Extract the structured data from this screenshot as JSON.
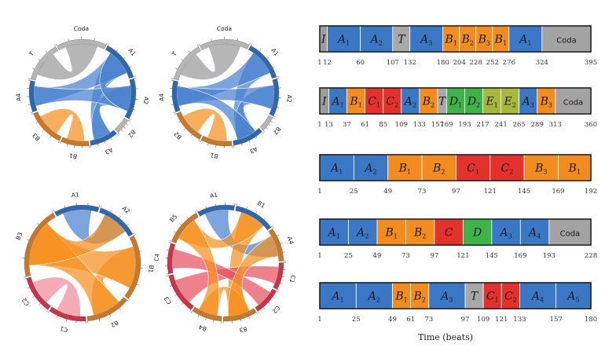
{
  "colors": {
    "A": "#3a78c6",
    "B": "#f28c1f",
    "C": "#e3322b",
    "D": "#3db34a",
    "E": "#a7b83a",
    "T": "#a8a8a8",
    "I": "#9c9c9c",
    "Coda": "#a3a3a3",
    "chordA": "#4a82d0",
    "chordB": "#f5901e",
    "chordGray": "#9a9a9a",
    "chordPink": "#f08a9a",
    "chordRed": "#e8505e",
    "ringGray": "#b5b5b5",
    "ringBlue": "#2e67ad",
    "ringOrange": "#c8782a",
    "ringRed": "#c8344a"
  },
  "axis_label": "Time (beats)",
  "timelines": [
    {
      "segments": [
        {
          "label": "I",
          "sub": "",
          "type": "I",
          "start": 1,
          "end": 12
        },
        {
          "label": "A",
          "sub": "1",
          "type": "A",
          "start": 12,
          "end": 60
        },
        {
          "label": "A",
          "sub": "2",
          "type": "A",
          "start": 60,
          "end": 107
        },
        {
          "label": "T",
          "sub": "",
          "type": "T",
          "start": 107,
          "end": 132
        },
        {
          "label": "A",
          "sub": "3",
          "type": "A",
          "start": 132,
          "end": 180
        },
        {
          "label": "B",
          "sub": "1",
          "type": "B",
          "start": 180,
          "end": 204
        },
        {
          "label": "B",
          "sub": "2",
          "type": "B",
          "start": 204,
          "end": 228
        },
        {
          "label": "B",
          "sub": "3",
          "type": "B",
          "start": 228,
          "end": 252
        },
        {
          "label": "B",
          "sub": "1",
          "type": "B",
          "start": 252,
          "end": 276
        },
        {
          "label": "A",
          "sub": "1",
          "type": "A",
          "start": 276,
          "end": 324
        },
        {
          "label": "Coda",
          "sub": "",
          "type": "Coda",
          "start": 324,
          "end": 395
        }
      ],
      "ticks": [
        "1",
        "12",
        "60",
        "107",
        "132",
        "180",
        "204",
        "228",
        "252",
        "276",
        "324",
        "395"
      ]
    },
    {
      "segments": [
        {
          "label": "I",
          "sub": "",
          "type": "I",
          "start": 1,
          "end": 13
        },
        {
          "label": "A",
          "sub": "1",
          "type": "A",
          "start": 13,
          "end": 37
        },
        {
          "label": "B",
          "sub": "1",
          "type": "B",
          "start": 37,
          "end": 61
        },
        {
          "label": "C",
          "sub": "1",
          "type": "C",
          "start": 61,
          "end": 85
        },
        {
          "label": "C",
          "sub": "2",
          "type": "C",
          "start": 85,
          "end": 109
        },
        {
          "label": "A",
          "sub": "2",
          "type": "A",
          "start": 109,
          "end": 133
        },
        {
          "label": "B",
          "sub": "2",
          "type": "B",
          "start": 133,
          "end": 157
        },
        {
          "label": "T",
          "sub": "",
          "type": "T",
          "start": 157,
          "end": 169
        },
        {
          "label": "D",
          "sub": "1",
          "type": "D",
          "start": 169,
          "end": 193
        },
        {
          "label": "D",
          "sub": "2",
          "type": "D",
          "start": 193,
          "end": 217
        },
        {
          "label": "E",
          "sub": "1",
          "type": "E",
          "start": 217,
          "end": 241
        },
        {
          "label": "E",
          "sub": "2",
          "type": "E",
          "start": 241,
          "end": 265
        },
        {
          "label": "A",
          "sub": "3",
          "type": "A",
          "start": 265,
          "end": 289
        },
        {
          "label": "B",
          "sub": "3",
          "type": "B",
          "start": 289,
          "end": 313
        },
        {
          "label": "Coda",
          "sub": "",
          "type": "Coda",
          "start": 313,
          "end": 360
        }
      ],
      "ticks": [
        "1",
        "13",
        "37",
        "61",
        "85",
        "109",
        "133",
        "157",
        "169",
        "193",
        "217",
        "241",
        "265",
        "289",
        "313",
        "360"
      ]
    },
    {
      "segments": [
        {
          "label": "A",
          "sub": "1",
          "type": "A",
          "start": 1,
          "end": 25
        },
        {
          "label": "A",
          "sub": "2",
          "type": "A",
          "start": 25,
          "end": 49
        },
        {
          "label": "B",
          "sub": "1",
          "type": "B",
          "start": 49,
          "end": 73
        },
        {
          "label": "B",
          "sub": "2",
          "type": "B",
          "start": 73,
          "end": 97
        },
        {
          "label": "C",
          "sub": "1",
          "type": "C",
          "start": 97,
          "end": 121
        },
        {
          "label": "C",
          "sub": "2",
          "type": "C",
          "start": 121,
          "end": 145
        },
        {
          "label": "B",
          "sub": "3",
          "type": "B",
          "start": 145,
          "end": 169
        },
        {
          "label": "B",
          "sub": "1",
          "type": "B",
          "start": 169,
          "end": 192
        }
      ],
      "ticks": [
        "1",
        "25",
        "49",
        "73",
        "97",
        "121",
        "145",
        "169",
        "192"
      ]
    },
    {
      "segments": [
        {
          "label": "A",
          "sub": "1",
          "type": "A",
          "start": 1,
          "end": 25
        },
        {
          "label": "A",
          "sub": "2",
          "type": "A",
          "start": 25,
          "end": 49
        },
        {
          "label": "B",
          "sub": "1",
          "type": "B",
          "start": 49,
          "end": 73
        },
        {
          "label": "B",
          "sub": "2",
          "type": "B",
          "start": 73,
          "end": 97
        },
        {
          "label": "C",
          "sub": "",
          "type": "C",
          "start": 97,
          "end": 121
        },
        {
          "label": "D",
          "sub": "",
          "type": "D",
          "start": 121,
          "end": 145
        },
        {
          "label": "A",
          "sub": "3",
          "type": "A",
          "start": 145,
          "end": 169
        },
        {
          "label": "A",
          "sub": "4",
          "type": "A",
          "start": 169,
          "end": 193
        },
        {
          "label": "Coda",
          "sub": "",
          "type": "Coda",
          "start": 193,
          "end": 228
        }
      ],
      "ticks": [
        "1",
        "25",
        "49",
        "73",
        "97",
        "121",
        "145",
        "169",
        "193",
        "228"
      ]
    },
    {
      "segments": [
        {
          "label": "A",
          "sub": "1",
          "type": "A",
          "start": 1,
          "end": 25
        },
        {
          "label": "A",
          "sub": "2",
          "type": "A",
          "start": 25,
          "end": 49
        },
        {
          "label": "B",
          "sub": "1",
          "type": "B",
          "start": 49,
          "end": 61
        },
        {
          "label": "B",
          "sub": "2",
          "type": "B",
          "start": 61,
          "end": 73
        },
        {
          "label": "A",
          "sub": "3",
          "type": "A",
          "start": 73,
          "end": 97
        },
        {
          "label": "T",
          "sub": "",
          "type": "T",
          "start": 97,
          "end": 109
        },
        {
          "label": "C",
          "sub": "1",
          "type": "C",
          "start": 109,
          "end": 121
        },
        {
          "label": "C",
          "sub": "2",
          "type": "C",
          "start": 121,
          "end": 133
        },
        {
          "label": "A",
          "sub": "4",
          "type": "A",
          "start": 133,
          "end": 157
        },
        {
          "label": "A",
          "sub": "5",
          "type": "A",
          "start": 157,
          "end": 180
        }
      ],
      "ticks": [
        "1",
        "25",
        "49",
        "61",
        "73",
        "97",
        "109",
        "121",
        "133",
        "157",
        "180"
      ]
    }
  ],
  "circles": [
    {
      "groups": [
        {
          "label": "Coda",
          "type": "Coda",
          "ring": "ringGray",
          "share": 0.16
        },
        {
          "label": "A1",
          "type": "A",
          "ring": "ringBlue",
          "share": 0.13
        },
        {
          "label": "A2",
          "type": "A",
          "ring": "ringBlue",
          "share": 0.13
        },
        {
          "label": "B2",
          "type": "B",
          "ring": "ringGray",
          "share": 0.05
        },
        {
          "label": "A3",
          "type": "A",
          "ring": "ringBlue",
          "share": 0.09
        },
        {
          "label": "B1",
          "type": "B",
          "ring": "ringOrange",
          "share": 0.09
        },
        {
          "label": "B3",
          "type": "B",
          "ring": "ringOrange",
          "share": 0.12
        },
        {
          "label": "A4",
          "type": "A",
          "ring": "ringBlue",
          "share": 0.1
        },
        {
          "label": "T",
          "type": "T",
          "ring": "ringGray",
          "share": 0.13
        }
      ],
      "ribbons": [
        {
          "from": 1,
          "to": 4,
          "color": "chordA"
        },
        {
          "from": 1,
          "to": 7,
          "color": "chordA"
        },
        {
          "from": 2,
          "to": 4,
          "color": "chordA"
        },
        {
          "from": 2,
          "to": 7,
          "color": "chordA"
        },
        {
          "from": 5,
          "to": 6,
          "color": "chordB"
        },
        {
          "from": 0,
          "to": 8,
          "color": "chordGray"
        },
        {
          "from": 1,
          "to": 2,
          "color": "chordA"
        }
      ]
    },
    {
      "groups": [
        {
          "label": "Coda",
          "type": "Coda",
          "ring": "ringGray",
          "share": 0.16
        },
        {
          "label": "A1",
          "type": "A",
          "ring": "ringBlue",
          "share": 0.13
        },
        {
          "label": "A2",
          "type": "A",
          "ring": "ringBlue",
          "share": 0.12
        },
        {
          "label": "B2",
          "type": "B",
          "ring": "ringGray",
          "share": 0.05
        },
        {
          "label": "A3",
          "type": "A",
          "ring": "ringBlue",
          "share": 0.1
        },
        {
          "label": "B1",
          "type": "B",
          "ring": "ringOrange",
          "share": 0.1
        },
        {
          "label": "B2",
          "type": "B",
          "ring": "ringOrange",
          "share": 0.11
        },
        {
          "label": "A4",
          "type": "A",
          "ring": "ringBlue",
          "share": 0.1
        },
        {
          "label": "T",
          "type": "T",
          "ring": "ringGray",
          "share": 0.13
        }
      ],
      "ribbons": [
        {
          "from": 1,
          "to": 4,
          "color": "chordA"
        },
        {
          "from": 1,
          "to": 7,
          "color": "chordA"
        },
        {
          "from": 2,
          "to": 4,
          "color": "chordA"
        },
        {
          "from": 2,
          "to": 7,
          "color": "chordA"
        },
        {
          "from": 5,
          "to": 6,
          "color": "chordB"
        },
        {
          "from": 0,
          "to": 8,
          "color": "chordGray"
        },
        {
          "from": 4,
          "to": 7,
          "color": "chordA"
        }
      ]
    },
    {
      "groups": [
        {
          "label": "A1",
          "type": "A",
          "ring": "ringBlue",
          "share": 0.13
        },
        {
          "label": "A2",
          "type": "A",
          "ring": "ringBlue",
          "share": 0.12
        },
        {
          "label": "B1",
          "type": "B",
          "ring": "ringOrange",
          "share": 0.19
        },
        {
          "label": "B2",
          "type": "B",
          "ring": "ringOrange",
          "share": 0.13
        },
        {
          "label": "C1",
          "type": "C",
          "ring": "ringRed",
          "share": 0.11
        },
        {
          "label": "C2",
          "type": "C",
          "ring": "ringRed",
          "share": 0.11
        },
        {
          "label": "B3",
          "type": "B",
          "ring": "ringOrange",
          "share": 0.21
        }
      ],
      "ribbons": [
        {
          "from": 0,
          "to": 1,
          "color": "chordA"
        },
        {
          "from": 2,
          "to": 3,
          "color": "chordB"
        },
        {
          "from": 2,
          "to": 6,
          "color": "chordB"
        },
        {
          "from": 3,
          "to": 6,
          "color": "chordB"
        },
        {
          "from": 4,
          "to": 5,
          "color": "chordPink"
        },
        {
          "from": 1,
          "to": 6,
          "color": "chordB"
        }
      ]
    },
    {
      "groups": [
        {
          "label": "A1",
          "type": "A",
          "ring": "ringBlue",
          "share": 0.11
        },
        {
          "label": "B1",
          "type": "B",
          "ring": "ringBlue",
          "share": 0.12
        },
        {
          "label": "A4",
          "type": "A",
          "ring": "ringOrange",
          "share": 0.1
        },
        {
          "label": "C1",
          "type": "C",
          "ring": "ringRed",
          "share": 0.08
        },
        {
          "label": "C2",
          "type": "C",
          "ring": "ringRed",
          "share": 0.08
        },
        {
          "label": "B3",
          "type": "B",
          "ring": "ringOrange",
          "share": 0.1
        },
        {
          "label": "B4",
          "type": "B",
          "ring": "ringOrange",
          "share": 0.09
        },
        {
          "label": "C3",
          "type": "C",
          "ring": "ringRed",
          "share": 0.12
        },
        {
          "label": "C4",
          "type": "C",
          "ring": "ringRed",
          "share": 0.09
        },
        {
          "label": "B5",
          "type": "B",
          "ring": "ringOrange",
          "share": 0.11
        }
      ],
      "ribbons": [
        {
          "from": 0,
          "to": 2,
          "color": "chordA"
        },
        {
          "from": 1,
          "to": 5,
          "color": "chordB"
        },
        {
          "from": 1,
          "to": 9,
          "color": "chordB"
        },
        {
          "from": 5,
          "to": 6,
          "color": "chordB"
        },
        {
          "from": 3,
          "to": 7,
          "color": "chordRed"
        },
        {
          "from": 4,
          "to": 8,
          "color": "chordRed"
        },
        {
          "from": 6,
          "to": 9,
          "color": "chordB"
        },
        {
          "from": 2,
          "to": 5,
          "color": "chordB"
        }
      ]
    }
  ]
}
